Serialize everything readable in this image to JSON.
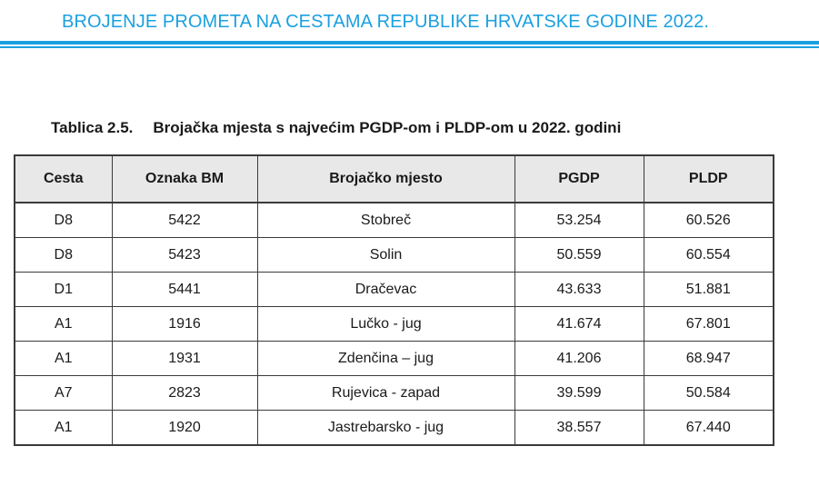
{
  "header": {
    "title": "BROJENJE PROMETA NA CESTAMA REPUBLIKE HRVATSKE GODINE 2022."
  },
  "caption": {
    "number": "Tablica 2.5.",
    "text": "Brojačka mjesta s najvećim PGDP-om i PLDP-om u 2022. godini"
  },
  "table": {
    "columns": [
      "Cesta",
      "Oznaka BM",
      "Brojačko mjesto",
      "PGDP",
      "PLDP"
    ],
    "rows": [
      [
        "D8",
        "5422",
        "Stobreč",
        "53.254",
        "60.526"
      ],
      [
        "D8",
        "5423",
        "Solin",
        "50.559",
        "60.554"
      ],
      [
        "D1",
        "5441",
        "Dračevac",
        "43.633",
        "51.881"
      ],
      [
        "A1",
        "1916",
        "Lučko - jug",
        "41.674",
        "67.801"
      ],
      [
        "A1",
        "1931",
        "Zdenčina – jug",
        "41.206",
        "68.947"
      ],
      [
        "A7",
        "2823",
        "Rujevica - zapad",
        "39.599",
        "50.584"
      ],
      [
        "A1",
        "1920",
        "Jastrebarsko - jug",
        "38.557",
        "67.440"
      ]
    ]
  },
  "colors": {
    "accent": "#1aa0e0",
    "header_fill": "#e8e8e8",
    "border": "#3a3a3a"
  }
}
